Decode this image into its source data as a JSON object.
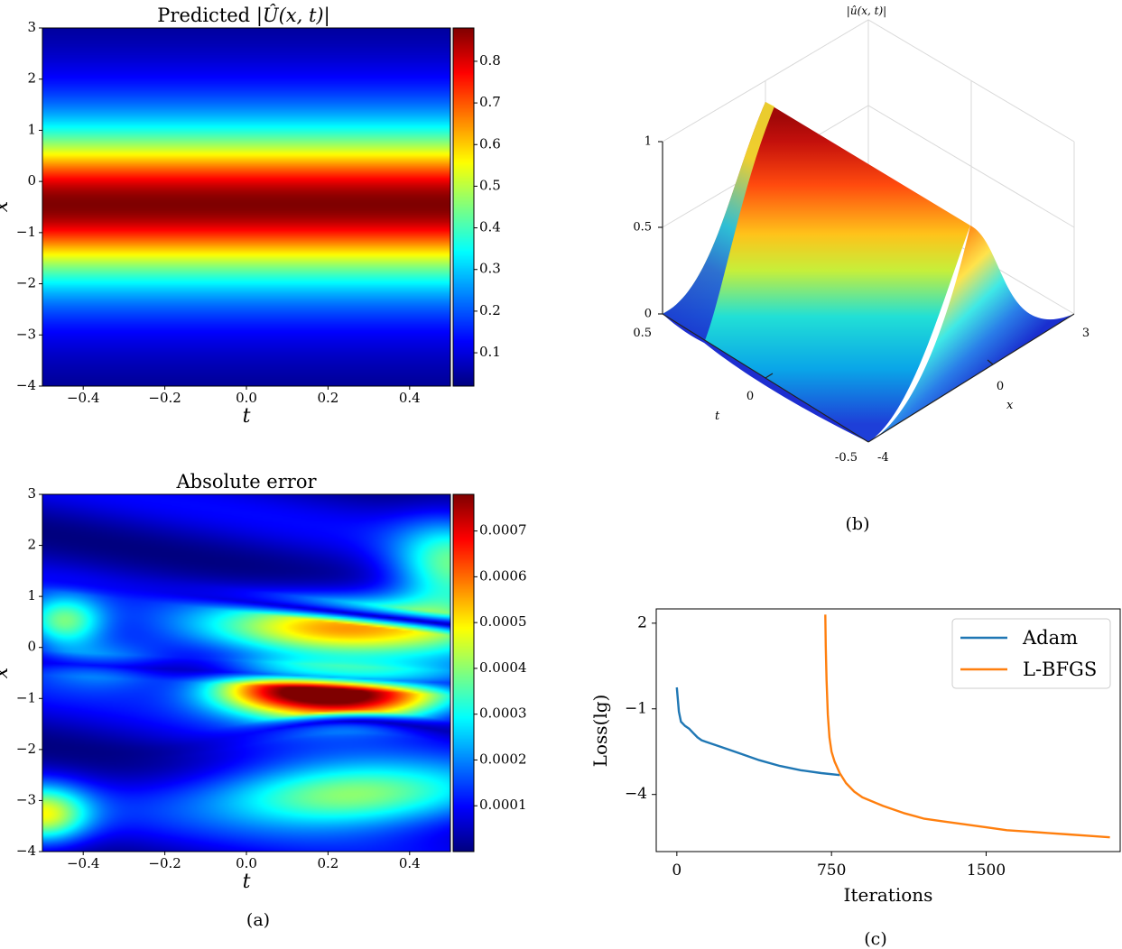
{
  "colors": {
    "jet": [
      "#00007f",
      "#0000ff",
      "#007fff",
      "#00ffff",
      "#7fff7f",
      "#ffff00",
      "#ff7f00",
      "#ff0000",
      "#7f0000"
    ],
    "adam": "#1f77b4",
    "lbfgs": "#ff7f0e"
  },
  "chart_data": [
    {
      "id": "heatmap-pred",
      "type": "heatmap",
      "title": "Predicted |Û(x,t)|",
      "title_lhs": "Predicted ",
      "title_rhs": "|Û(x, t)|",
      "xlabel": "t",
      "ylabel": "x",
      "xlim": [
        -0.5,
        0.5
      ],
      "ylim": [
        -4,
        3
      ],
      "xticks": [
        "−0.4",
        "−0.2",
        "0.0",
        "0.2",
        "0.4"
      ],
      "xtick_values": [
        -0.4,
        -0.2,
        0.0,
        0.2,
        0.4
      ],
      "yticks": [
        "3",
        "2",
        "1",
        "0",
        "−1",
        "−2",
        "−3",
        "−4"
      ],
      "ytick_values": [
        3,
        2,
        1,
        0,
        -1,
        -2,
        -3,
        -4
      ],
      "profile": "sech",
      "profile_center": -0.45,
      "colorbar_range": [
        0.02,
        0.88
      ],
      "colorbar_ticks": [
        "0.8",
        "0.7",
        "0.6",
        "0.5",
        "0.4",
        "0.3",
        "0.2",
        "0.1"
      ],
      "colorbar_tick_values": [
        0.8,
        0.7,
        0.6,
        0.5,
        0.4,
        0.3,
        0.2,
        0.1
      ]
    },
    {
      "id": "heatmap-error",
      "type": "heatmap",
      "title": "Absolute error",
      "xlabel": "t",
      "ylabel": "x",
      "xlim": [
        -0.5,
        0.5
      ],
      "ylim": [
        -4,
        3
      ],
      "xticks": [
        "−0.4",
        "−0.2",
        "0.0",
        "0.2",
        "0.4"
      ],
      "xtick_values": [
        -0.4,
        -0.2,
        0.0,
        0.2,
        0.4
      ],
      "yticks": [
        "3",
        "2",
        "1",
        "0",
        "−1",
        "−2",
        "−3",
        "−4"
      ],
      "ytick_values": [
        3,
        2,
        1,
        0,
        -1,
        -2,
        -3,
        -4
      ],
      "colorbar_range": [
        0.0,
        0.00078
      ],
      "colorbar_ticks": [
        "0.0007",
        "0.0006",
        "0.0005",
        "0.0004",
        "0.0003",
        "0.0002",
        "0.0001"
      ],
      "colorbar_tick_values": [
        0.0007,
        0.0006,
        0.0005,
        0.0004,
        0.0003,
        0.0002,
        0.0001
      ],
      "error_blobs": [
        {
          "t": 0.25,
          "x": -0.95,
          "st": 0.18,
          "sx": 0.35,
          "a": 0.00078
        },
        {
          "t": 0.05,
          "x": -0.75,
          "st": 0.12,
          "sx": 0.3,
          "a": 0.0003
        },
        {
          "t": 0.25,
          "x": 0.4,
          "st": 0.25,
          "sx": 0.4,
          "a": 0.00047
        },
        {
          "t": 0.25,
          "x": -2.9,
          "st": 0.25,
          "sx": 0.45,
          "a": 0.0004
        },
        {
          "t": -0.5,
          "x": -3.3,
          "st": 0.08,
          "sx": 0.4,
          "a": 0.0004
        },
        {
          "t": -0.45,
          "x": 0.5,
          "st": 0.07,
          "sx": 0.35,
          "a": 0.00033
        },
        {
          "t": 0.5,
          "x": 1.5,
          "st": 0.1,
          "sx": 0.7,
          "a": 0.0003
        },
        {
          "t": -0.35,
          "x": -0.3,
          "st": 0.12,
          "sx": 0.35,
          "a": 0.0002
        }
      ]
    },
    {
      "id": "surface-3d",
      "type": "surface",
      "title": "|û(x, t)|",
      "xlabel": "x",
      "ylabel": "t",
      "zticks": [
        "1",
        "0.5",
        "0"
      ],
      "ztick_values": [
        1,
        0.5,
        0
      ],
      "xticks": [
        "-4",
        "0",
        "3"
      ],
      "xtick_values": [
        -4,
        0,
        3
      ],
      "tticks": [
        "0.5",
        "0",
        "-0.5"
      ],
      "ttick_values": [
        0.5,
        0,
        -0.5
      ],
      "peak_x": -0.45,
      "peak_value": 1.0
    },
    {
      "id": "loss-curve",
      "type": "line",
      "xlabel": "Iterations",
      "ylabel": "Loss(lg)",
      "xlim": [
        -100,
        2150
      ],
      "ylim": [
        -6.0,
        2.5
      ],
      "xticks": [
        "0",
        "750",
        "1500"
      ],
      "xtick_values": [
        0,
        750,
        1500
      ],
      "yticks": [
        "2",
        "−1",
        "−4"
      ],
      "ytick_values": [
        2,
        -1,
        -4
      ],
      "legend_position": "top-right",
      "series": [
        {
          "name": "Adam",
          "x": [
            0,
            10,
            20,
            40,
            60,
            80,
            100,
            120,
            140,
            200,
            300,
            400,
            500,
            600,
            700,
            790
          ],
          "y": [
            -0.25,
            -1.1,
            -1.45,
            -1.6,
            -1.7,
            -1.85,
            -2.0,
            -2.1,
            -2.15,
            -2.3,
            -2.55,
            -2.8,
            -3.0,
            -3.15,
            -3.25,
            -3.32
          ]
        },
        {
          "name": "L-BFGS",
          "x": [
            720,
            722,
            726,
            732,
            740,
            750,
            765,
            790,
            820,
            860,
            900,
            1000,
            1100,
            1200,
            1300,
            1400,
            1500,
            1600,
            1700,
            1800,
            1900,
            2000,
            2100
          ],
          "y": [
            2.3,
            1.2,
            0.0,
            -1.2,
            -2.0,
            -2.5,
            -2.85,
            -3.25,
            -3.6,
            -3.9,
            -4.1,
            -4.4,
            -4.65,
            -4.85,
            -4.95,
            -5.05,
            -5.15,
            -5.25,
            -5.3,
            -5.35,
            -5.4,
            -5.45,
            -5.5
          ]
        }
      ]
    }
  ],
  "captions": {
    "a": "(a)",
    "b": "(b)",
    "c": "(c)"
  }
}
